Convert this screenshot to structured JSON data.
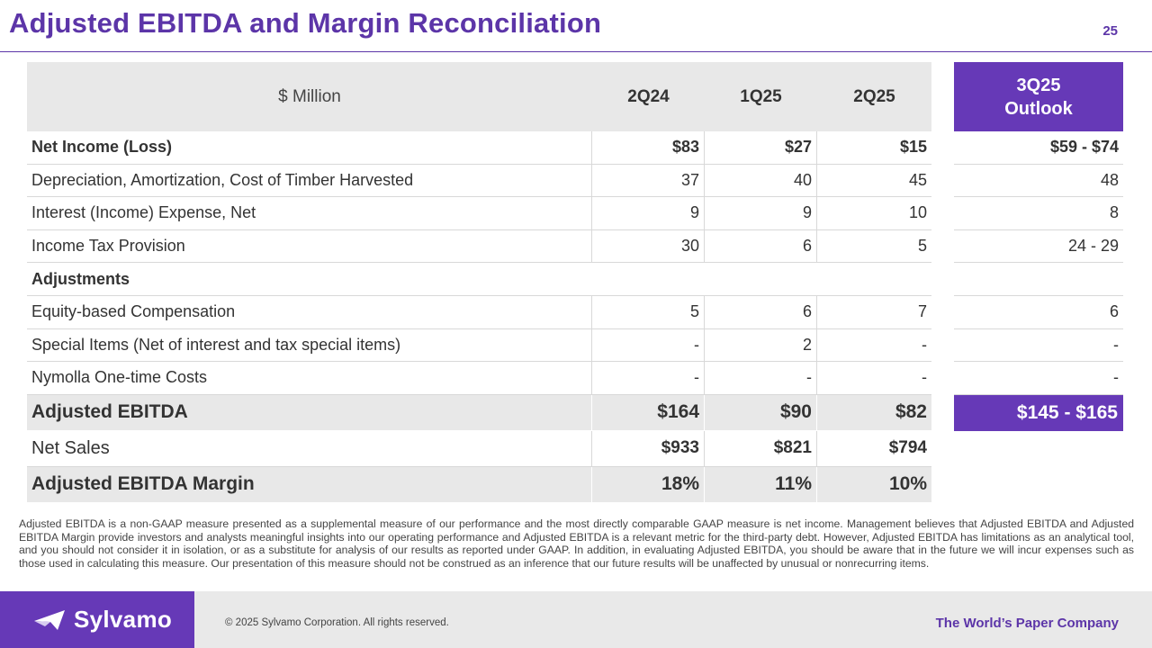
{
  "slide": {
    "title": "Adjusted EBITDA and Margin Reconciliation",
    "page_number": "25"
  },
  "table": {
    "header": {
      "label": "$ Million",
      "cols": [
        "2Q24",
        "1Q25",
        "2Q25"
      ]
    },
    "outlook_header": {
      "line1": "3Q25",
      "line2": "Outlook"
    },
    "rows": [
      {
        "label": "Net Income (Loss)",
        "values": [
          "$83",
          "$27",
          "$15"
        ],
        "outlook": "$59 - $74"
      },
      {
        "label": "Depreciation, Amortization, Cost of Timber Harvested",
        "values": [
          "37",
          "40",
          "45"
        ],
        "outlook": "48"
      },
      {
        "label": "Interest (Income) Expense, Net",
        "values": [
          "9",
          "9",
          "10"
        ],
        "outlook": "8"
      },
      {
        "label": "Income Tax Provision",
        "values": [
          "30",
          "6",
          "5"
        ],
        "outlook": "24 - 29"
      },
      {
        "label": "Adjustments"
      },
      {
        "label": "Equity-based Compensation",
        "values": [
          "5",
          "6",
          "7"
        ],
        "outlook": "6"
      },
      {
        "label": "Special Items (Net of interest and tax special items)",
        "values": [
          "-",
          "2",
          "-"
        ],
        "outlook": "-"
      },
      {
        "label": "Nymolla One-time Costs",
        "values": [
          "-",
          "-",
          "-"
        ],
        "outlook": "-"
      },
      {
        "label": "Adjusted EBITDA",
        "values": [
          "$164",
          "$90",
          "$82"
        ],
        "outlook": "$145 - $165"
      },
      {
        "label": "Net Sales",
        "values": [
          "$933",
          "$821",
          "$794"
        ]
      },
      {
        "label": "Adjusted EBITDA Margin",
        "values": [
          "18%",
          "11%",
          "10%"
        ]
      }
    ]
  },
  "disclaimer": "Adjusted EBITDA is a non-GAAP measure presented as a supplemental measure of our performance and the most directly comparable GAAP measure is net income. Management believes that Adjusted EBITDA and Adjusted EBITDA Margin provide investors and analysts meaningful insights into our operating performance and Adjusted EBITDA is a relevant metric for the third-party debt. However, Adjusted EBITDA has limitations as an analytical tool, and you should not consider it in isolation, or as a substitute for analysis of our results as reported under GAAP. In addition, in evaluating Adjusted EBITDA, you should be aware that in the future we will incur expenses such as those used in calculating this measure. Our presentation of this measure should not be construed as an inference that our future results will be unaffected by unusual or nonrecurring items.",
  "footer": {
    "logo_text": "Sylvamo",
    "copyright": "© 2025 Sylvamo Corporation. All rights reserved.",
    "tagline": "The World’s Paper Company"
  },
  "colors": {
    "brand_purple": "#6639b7",
    "title_purple": "#5c35a8",
    "header_gray": "#e8e8e8"
  }
}
